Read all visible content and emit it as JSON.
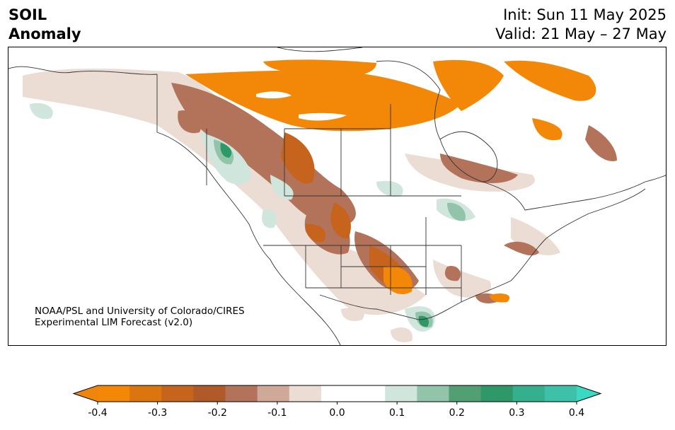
{
  "header": {
    "variable": "SOIL",
    "quantity": "Anomaly",
    "init": "Init: Sun 11 May 2025",
    "valid": "Valid: 21 May – 27 May"
  },
  "credit": {
    "line1": "NOAA/PSL and University of Colorado/CIRES",
    "line2": "Experimental LIM Forecast (v2.0)"
  },
  "colorbar": {
    "extend": "both",
    "colors": [
      "#f0850c",
      "#f38808",
      "#db750f",
      "#c6641d",
      "#b05a2a",
      "#b3735a",
      "#d0a897",
      "#ebdcd4",
      "#ffffff",
      "#ffffff",
      "#d0e6dc",
      "#92c4aa",
      "#519f72",
      "#2f9868",
      "#35b08f",
      "#3ec1a8",
      "#3bd8c4"
    ],
    "ticks": [
      "-0.4",
      "-0.3",
      "-0.2",
      "-0.1",
      "0.0",
      "0.1",
      "0.2",
      "0.3",
      "0.4"
    ],
    "tick_values": [
      -0.4,
      -0.3,
      -0.2,
      -0.1,
      0.0,
      0.1,
      0.2,
      0.3,
      0.4
    ]
  }
}
